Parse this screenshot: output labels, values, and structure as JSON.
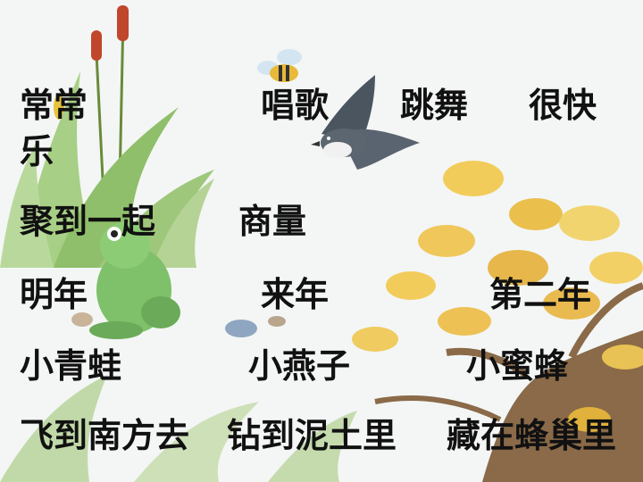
{
  "colors": {
    "text": "#111111",
    "foliage_yellow": "#f2c84a",
    "grass_green": "#8fbf6a",
    "frog_green": "#7fc06a",
    "trunk_brown": "#8a6a48"
  },
  "illustration": {
    "icons": [
      "cattail-plant-icon",
      "grass-tuft-icon",
      "bee-icon",
      "swallow-icon",
      "frog-icon",
      "autumn-tree-icon",
      "pebble-icon"
    ]
  },
  "rows": [
    {
      "items": [
        "常常",
        "唱歌",
        "跳舞",
        "很快"
      ],
      "wrap": "乐"
    },
    {
      "items": [
        "聚到一起",
        "商量"
      ]
    },
    {
      "items": [
        "明年",
        "来年",
        "第二年"
      ]
    },
    {
      "items": [
        "小青蛙",
        "小燕子",
        "小蜜蜂"
      ]
    },
    {
      "items": [
        "飞到南方去",
        "钻到泥土里",
        "藏在蜂巢里"
      ]
    }
  ]
}
